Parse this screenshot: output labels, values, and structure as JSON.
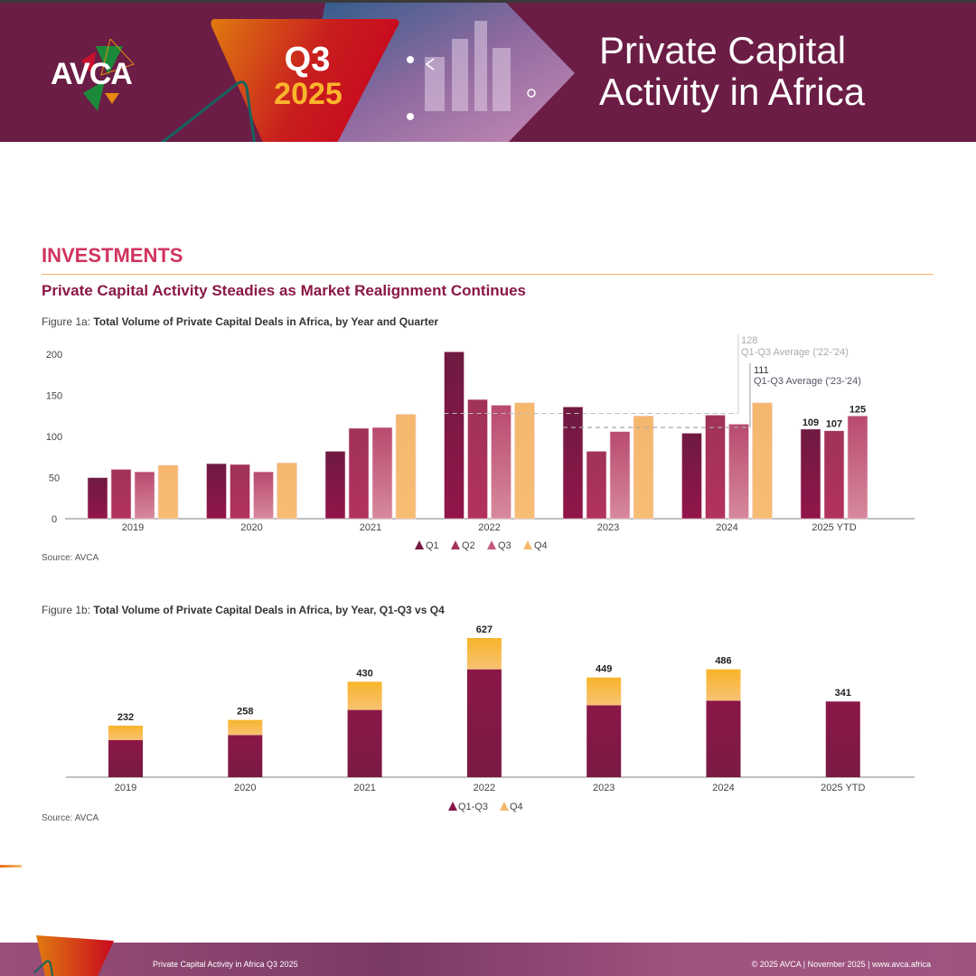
{
  "header": {
    "logo_text": "AVCA",
    "badge_quarter": "Q3",
    "badge_year": "2025",
    "title_line1": "Private Capital",
    "title_line2": "Activity in Africa"
  },
  "section": {
    "title": "INVESTMENTS",
    "subtitle": "Private Capital Activity Steadies as Market Realignment Continues"
  },
  "figure1a": {
    "caption_prefix": "Figure 1a: ",
    "caption_bold": "Total Volume of Private Capital Deals in Africa, by Year and Quarter",
    "source": "Source: AVCA"
  },
  "figure1b": {
    "caption_prefix": "Figure 1b: ",
    "caption_bold": "Total Volume of Private Capital Deals in Africa, by Year,  Q1-Q3 vs Q4",
    "source": "Source: AVCA"
  },
  "colors": {
    "brand_purple": "#6b1d45",
    "accent_pink": "#d0345e",
    "q1": "#7a1a45",
    "q2": "#a93258",
    "q3": "#c65a80",
    "q4": "#f6b86e",
    "q1q3": "#86174a",
    "q4_stack": "#f8b642"
  },
  "chart_data": [
    {
      "type": "bar",
      "title": "Total Volume of Private Capital Deals in Africa, by Year and Quarter",
      "categories": [
        "2019",
        "2020",
        "2021",
        "2022",
        "2023",
        "2024",
        "2025 YTD"
      ],
      "series": [
        {
          "name": "Q1",
          "values": [
            50,
            67,
            82,
            203,
            136,
            104,
            109
          ]
        },
        {
          "name": "Q2",
          "values": [
            60,
            66,
            110,
            145,
            82,
            126,
            107
          ]
        },
        {
          "name": "Q3",
          "values": [
            57,
            57,
            111,
            138,
            106,
            115,
            125
          ]
        },
        {
          "name": "Q4",
          "values": [
            65,
            68,
            127,
            141,
            125,
            141,
            null
          ]
        }
      ],
      "data_labels": {
        "2025 YTD": [
          "109",
          "107",
          "125"
        ]
      },
      "yticks": [
        "0",
        "50",
        "100",
        "150",
        "200"
      ],
      "ylim": [
        0,
        210
      ],
      "xlabel": "",
      "ylabel": "",
      "legend": [
        "Q1",
        "Q2",
        "Q3",
        "Q4"
      ],
      "legend_position": "bottom",
      "reference_lines": [
        {
          "value": 128,
          "label_value": "128",
          "label": "Q1-Q3 Average ('22-'24)",
          "from": "2022",
          "to": "2024"
        },
        {
          "value": 111,
          "label_value": "111",
          "label": "Q1-Q3 Average ('23-'24)",
          "from": "2023",
          "to": "2024"
        }
      ],
      "grid": false
    },
    {
      "type": "bar",
      "stacked": true,
      "title": "Total Volume of Private Capital Deals in Africa, by Year, Q1-Q3 vs Q4",
      "categories": [
        "2019",
        "2020",
        "2021",
        "2022",
        "2023",
        "2024",
        "2025 YTD"
      ],
      "series": [
        {
          "name": "Q1-Q3",
          "values": [
            167,
            190,
            303,
            486,
            324,
            345,
            341
          ]
        },
        {
          "name": "Q4",
          "values": [
            65,
            68,
            127,
            141,
            125,
            141,
            0
          ]
        }
      ],
      "totals": [
        "232",
        "258",
        "430",
        "627",
        "449",
        "486",
        "341"
      ],
      "ylim": [
        0,
        640
      ],
      "legend": [
        "Q1-Q3",
        "Q4"
      ],
      "legend_position": "bottom",
      "grid": false
    }
  ],
  "footer": {
    "left": "Private Capital Activity in Africa Q3 2025",
    "right": "© 2025 AVCA  |  November 2025  |  www.avca.africa"
  }
}
